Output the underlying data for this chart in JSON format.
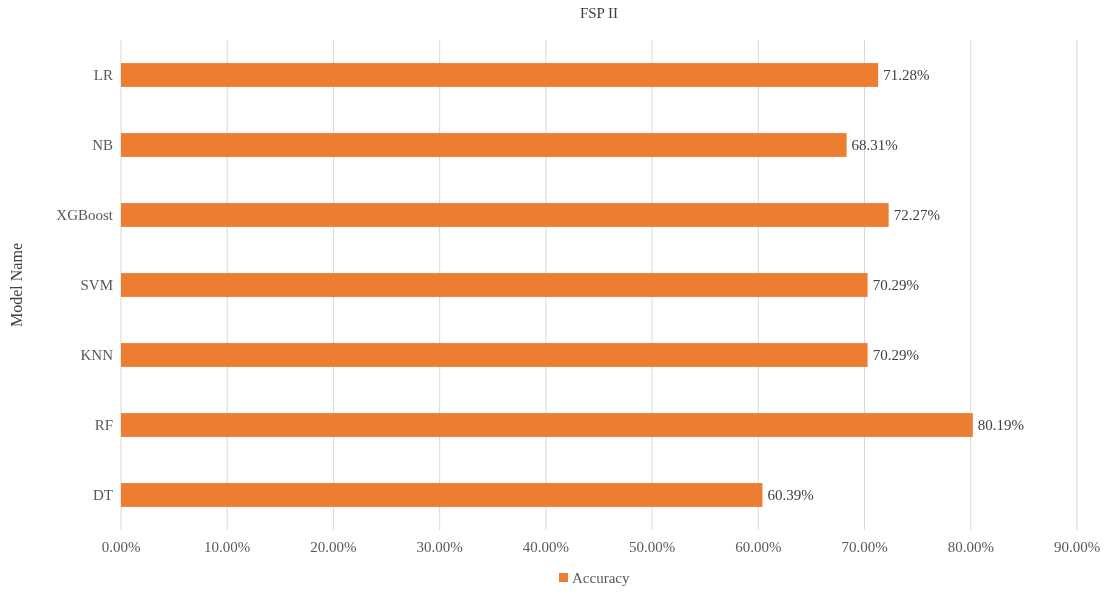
{
  "chart_data": {
    "type": "bar",
    "orientation": "horizontal",
    "title": "FSP II",
    "ylabel": "Model Name",
    "categories": [
      "LR",
      "NB",
      "XGBoost",
      "SVM",
      "KNN",
      "RF",
      "DT"
    ],
    "series": [
      {
        "name": "Accuracy",
        "color": "#ed7d31",
        "values": [
          71.28,
          68.31,
          72.27,
          70.29,
          70.29,
          80.19,
          60.39
        ],
        "value_labels": [
          "71.28%",
          "68.31%",
          "72.27%",
          "70.29%",
          "70.29%",
          "80.19%",
          "60.39%"
        ]
      }
    ],
    "xlim": [
      0,
      90
    ],
    "xticks": [
      {
        "value": 0,
        "label": "0.00%"
      },
      {
        "value": 10,
        "label": "10.00%"
      },
      {
        "value": 20,
        "label": "20.00%"
      },
      {
        "value": 30,
        "label": "30.00%"
      },
      {
        "value": 40,
        "label": "40.00%"
      },
      {
        "value": 50,
        "label": "50.00%"
      },
      {
        "value": 60,
        "label": "60.00%"
      },
      {
        "value": 70,
        "label": "70.00%"
      },
      {
        "value": 80,
        "label": "80.00%"
      },
      {
        "value": 90,
        "label": "90.00%"
      }
    ],
    "grid": "x",
    "legend": "bottom"
  }
}
